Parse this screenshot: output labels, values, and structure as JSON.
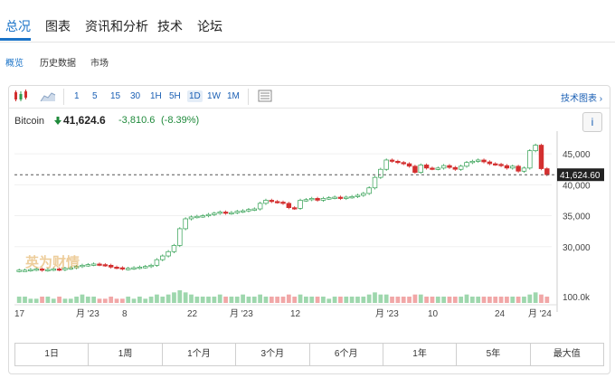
{
  "tabs": [
    "总况",
    "图表",
    "资讯和分析",
    "技术",
    "论坛"
  ],
  "subtabs": [
    "概览",
    "历史数据",
    "市场"
  ],
  "toolbar": {
    "periods": [
      "1",
      "5",
      "15",
      "30",
      "1H",
      "5H",
      "1D",
      "1W",
      "1M"
    ],
    "active_period": "1D",
    "tech_chart_link": "技术图表",
    "tech_chart_arrow": "›"
  },
  "quote": {
    "asset": "Bitcoin",
    "price": "41,624.6",
    "change": "-3,810.6",
    "change_pct": "(-8.39%)",
    "info": "i"
  },
  "watermark": "英为财情",
  "colors": {
    "up": "#2e9e4f",
    "down": "#d32f2f",
    "volume": "#f1a7a7",
    "volume_up": "#9ed7ad"
  },
  "chart_data": {
    "type": "candlestick",
    "y_ticks": [
      "45,000",
      "40,000",
      "35,000",
      "30,000"
    ],
    "y_range": [
      25000,
      47500
    ],
    "last_price_label": "41,624.60",
    "volume_label": "100.0k",
    "x_labels": [
      "17",
      "月 '23",
      "8",
      "22",
      "月 '23",
      "12",
      "月 '23",
      "10",
      "24",
      "月 '24"
    ],
    "closes": [
      26200,
      26200,
      26300,
      26400,
      26200,
      26300,
      26400,
      26300,
      26500,
      26600,
      26800,
      27000,
      27100,
      27200,
      27100,
      27000,
      26700,
      26600,
      26400,
      26500,
      26600,
      26700,
      26800,
      27000,
      27900,
      28500,
      29200,
      30200,
      32900,
      34500,
      34800,
      34900,
      35000,
      35200,
      35400,
      35600,
      35400,
      35500,
      35700,
      35800,
      36000,
      36100,
      37000,
      37500,
      37300,
      37200,
      37000,
      36300,
      36200,
      37500,
      37600,
      37800,
      37500,
      37800,
      37900,
      38000,
      37800,
      38000,
      38100,
      38300,
      38600,
      39500,
      41200,
      42500,
      44000,
      43800,
      43600,
      43400,
      43000,
      42000,
      43200,
      42700,
      42600,
      42700,
      43100,
      42800,
      42500,
      43000,
      43600,
      43800,
      44000,
      43700,
      43400,
      43300,
      43100,
      42700,
      43000,
      42200,
      42700,
      45500,
      46400,
      42600,
      41624
    ],
    "volumes": [
      3,
      3,
      2,
      2,
      3,
      3,
      2,
      3,
      2,
      2,
      3,
      4,
      3,
      3,
      2,
      2,
      3,
      2,
      2,
      3,
      2,
      3,
      2,
      3,
      4,
      3,
      4,
      5,
      6,
      5,
      4,
      3,
      3,
      3,
      3,
      4,
      3,
      3,
      3,
      4,
      3,
      3,
      4,
      3,
      3,
      3,
      3,
      4,
      3,
      4,
      3,
      3,
      3,
      3,
      2,
      3,
      3,
      3,
      3,
      3,
      3,
      4,
      5,
      4,
      4,
      3,
      3,
      3,
      3,
      4,
      4,
      3,
      3,
      3,
      3,
      3,
      3,
      3,
      4,
      3,
      3,
      3,
      3,
      3,
      3,
      3,
      3,
      3,
      3,
      4,
      5,
      4,
      3
    ]
  },
  "ranges": [
    "1日",
    "1周",
    "1个月",
    "3个月",
    "6个月",
    "1年",
    "5年",
    "最大值"
  ]
}
